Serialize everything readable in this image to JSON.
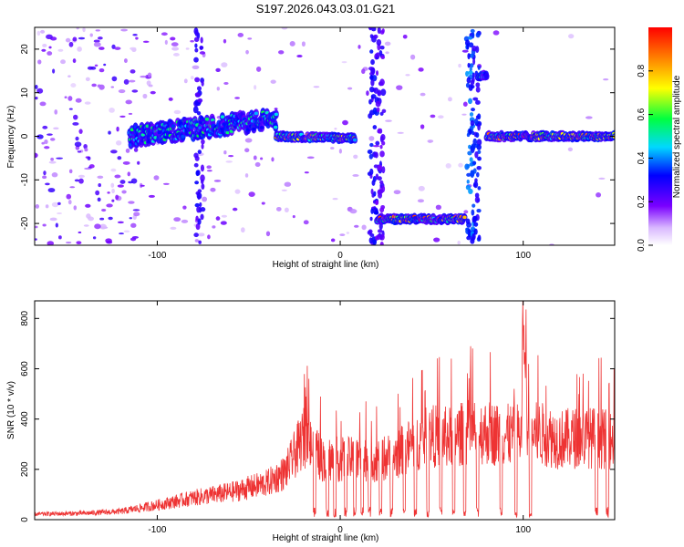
{
  "title": "S197.2026.043.03.01.G21",
  "chart_data": [
    {
      "type": "heatmap",
      "xlabel": "Height of straight line (km)",
      "ylabel": "Frequency (Hz)",
      "xlim": [
        -167,
        150
      ],
      "ylim": [
        -25,
        25
      ],
      "xticks": [
        -100,
        0,
        100
      ],
      "yticks": [
        -20,
        -10,
        0,
        10,
        20
      ],
      "colorbar": {
        "label": "Normalized spectral amplitude",
        "range": [
          0.0,
          1.0
        ],
        "ticks": [
          0.0,
          0.2,
          0.4,
          0.6,
          0.8
        ]
      },
      "features": [
        {
          "x0": -115,
          "x1": -35,
          "freq_start": 0,
          "freq_end": 4,
          "peak": 0.6
        },
        {
          "x0": -35,
          "x1": 8,
          "freq_start": 0,
          "freq_end": -0.5,
          "peak": 0.85
        },
        {
          "x0": 20,
          "x1": 68,
          "freq_start": -19,
          "freq_end": -19,
          "peak": 0.95
        },
        {
          "x0": 75,
          "x1": 80,
          "freq_start": 14,
          "freq_end": 14,
          "peak": 0.6
        },
        {
          "x0": 80,
          "x1": 150,
          "freq_start": 0,
          "freq_end": 0,
          "peak": 0.95
        }
      ]
    },
    {
      "type": "line",
      "xlabel": "Height of straight line (km)",
      "ylabel": "SNR (10 * v/v)",
      "xlim": [
        -167,
        150
      ],
      "ylim": [
        0,
        870
      ],
      "xticks": [
        -100,
        0,
        100
      ],
      "yticks": [
        0,
        200,
        400,
        600,
        800
      ],
      "line_color": "#ee3333",
      "envelope": {
        "x": [
          -167,
          -140,
          -120,
          -100,
          -80,
          -60,
          -40,
          -30,
          -20,
          -10,
          0,
          20,
          30,
          40,
          50,
          60,
          70,
          80,
          90,
          100,
          110,
          120,
          130,
          140,
          150
        ],
        "y": [
          30,
          35,
          45,
          80,
          120,
          150,
          200,
          260,
          450,
          330,
          330,
          330,
          350,
          420,
          460,
          450,
          480,
          480,
          460,
          470,
          470,
          440,
          450,
          450,
          430
        ]
      }
    }
  ]
}
